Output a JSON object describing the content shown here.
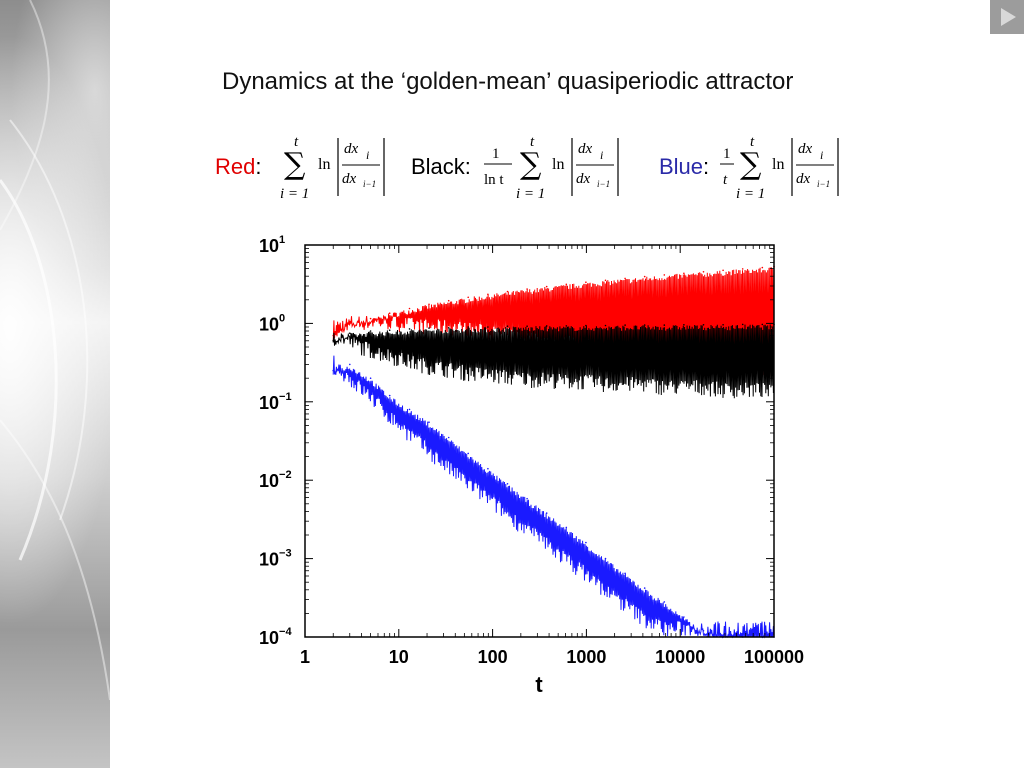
{
  "slide": {
    "title": "Dynamics at the ‘golden-mean’ quasiperiodic attractor",
    "nav_icon": "play-next-icon"
  },
  "formulas": [
    {
      "label": "Red",
      "color": "#e00000",
      "prefactor": [
        "",
        ""
      ],
      "upper": "t",
      "lower": "i = 1",
      "op": "ln",
      "num": "dx_i",
      "den": "dx_i-1"
    },
    {
      "label": "Black",
      "color": "#000000",
      "prefactor": [
        "1",
        "ln t"
      ],
      "upper": "t",
      "lower": "i = 1",
      "op": "ln",
      "num": "dx_i",
      "den": "dx_i-1"
    },
    {
      "label": "Blue",
      "color": "#2a2aa8",
      "prefactor": [
        "1",
        "t"
      ],
      "upper": "t",
      "lower": "i = 1",
      "op": "ln",
      "num": "dx_i",
      "den": "dx_i-1"
    }
  ],
  "chart_data": {
    "type": "line",
    "xscale": "log",
    "yscale": "log",
    "xlabel": "t",
    "ylabel": "",
    "xlim": [
      1,
      100000
    ],
    "ylim": [
      0.0001,
      10
    ],
    "xticks": [
      "1",
      "10",
      "100",
      "1000",
      "10000",
      "100000"
    ],
    "yticks": [
      {
        "base": "10",
        "exp": "1"
      },
      {
        "base": "10",
        "exp": "0"
      },
      {
        "base": "10",
        "exp": "−1"
      },
      {
        "base": "10",
        "exp": "−2"
      },
      {
        "base": "10",
        "exp": "−3"
      },
      {
        "base": "10",
        "exp": "−4"
      }
    ],
    "grid": false,
    "legend": "none",
    "series": [
      {
        "color": "#ff0000",
        "x": [
          2,
          3,
          5,
          8,
          13,
          21,
          34,
          55,
          89,
          144,
          233,
          377,
          610,
          987,
          1597,
          2584,
          4181,
          6765,
          10946,
          17711,
          28657,
          46368,
          75025,
          100000
        ],
        "y": [
          0.7,
          1.0,
          1.15,
          1.35,
          1.55,
          1.75,
          1.95,
          2.15,
          2.35,
          2.55,
          2.75,
          2.95,
          3.15,
          3.35,
          3.55,
          3.75,
          3.95,
          4.15,
          4.35,
          4.55,
          4.75,
          4.95,
          5.15,
          5.3
        ],
        "y_min": [
          0.7,
          0.8,
          0.8,
          0.8,
          0.75,
          0.7,
          0.7,
          0.65,
          0.6,
          0.55,
          0.5,
          0.45,
          0.45,
          0.4,
          0.4,
          0.35,
          0.35,
          0.3,
          0.3,
          0.28,
          0.25,
          0.25,
          0.22,
          0.2
        ]
      },
      {
        "color": "#000000",
        "x": [
          2,
          3,
          5,
          8,
          13,
          21,
          34,
          55,
          89,
          144,
          233,
          377,
          610,
          987,
          1597,
          2584,
          4181,
          6765,
          10946,
          17711,
          28657,
          46368,
          75025,
          100000
        ],
        "y": [
          0.6,
          0.75,
          0.8,
          0.82,
          0.85,
          0.87,
          0.88,
          0.9,
          0.9,
          0.92,
          0.92,
          0.93,
          0.93,
          0.94,
          0.94,
          0.95,
          0.95,
          0.95,
          0.96,
          0.96,
          0.96,
          0.97,
          0.97,
          0.97
        ],
        "y_min": [
          0.6,
          0.45,
          0.35,
          0.3,
          0.25,
          0.22,
          0.2,
          0.18,
          0.17,
          0.16,
          0.15,
          0.15,
          0.14,
          0.14,
          0.13,
          0.13,
          0.13,
          0.12,
          0.12,
          0.12,
          0.11,
          0.11,
          0.11,
          0.1
        ]
      },
      {
        "color": "#1a1aff",
        "x": [
          2,
          3,
          5,
          8,
          13,
          21,
          34,
          55,
          89,
          144,
          233,
          377,
          610,
          987,
          1597,
          2584,
          4181,
          6765,
          10946,
          17711,
          28657,
          46368,
          75025,
          100000
        ],
        "y": [
          0.25,
          0.3,
          0.2,
          0.12,
          0.08,
          0.055,
          0.035,
          0.022,
          0.014,
          0.009,
          0.0058,
          0.0038,
          0.0025,
          0.0016,
          0.001,
          0.00065,
          0.00042,
          0.00028,
          0.00018,
          0.00012,
          0.0001,
          0.0001,
          0.0001,
          0.0001
        ],
        "y_min": [
          0.25,
          0.15,
          0.09,
          0.05,
          0.03,
          0.018,
          0.011,
          0.007,
          0.0045,
          0.0028,
          0.0018,
          0.0012,
          0.00075,
          0.0005,
          0.0003,
          0.0002,
          0.00013,
          0.0001,
          0.0001,
          0.0001,
          0.0001,
          0.0001,
          0.0001,
          0.0001
        ]
      }
    ]
  }
}
